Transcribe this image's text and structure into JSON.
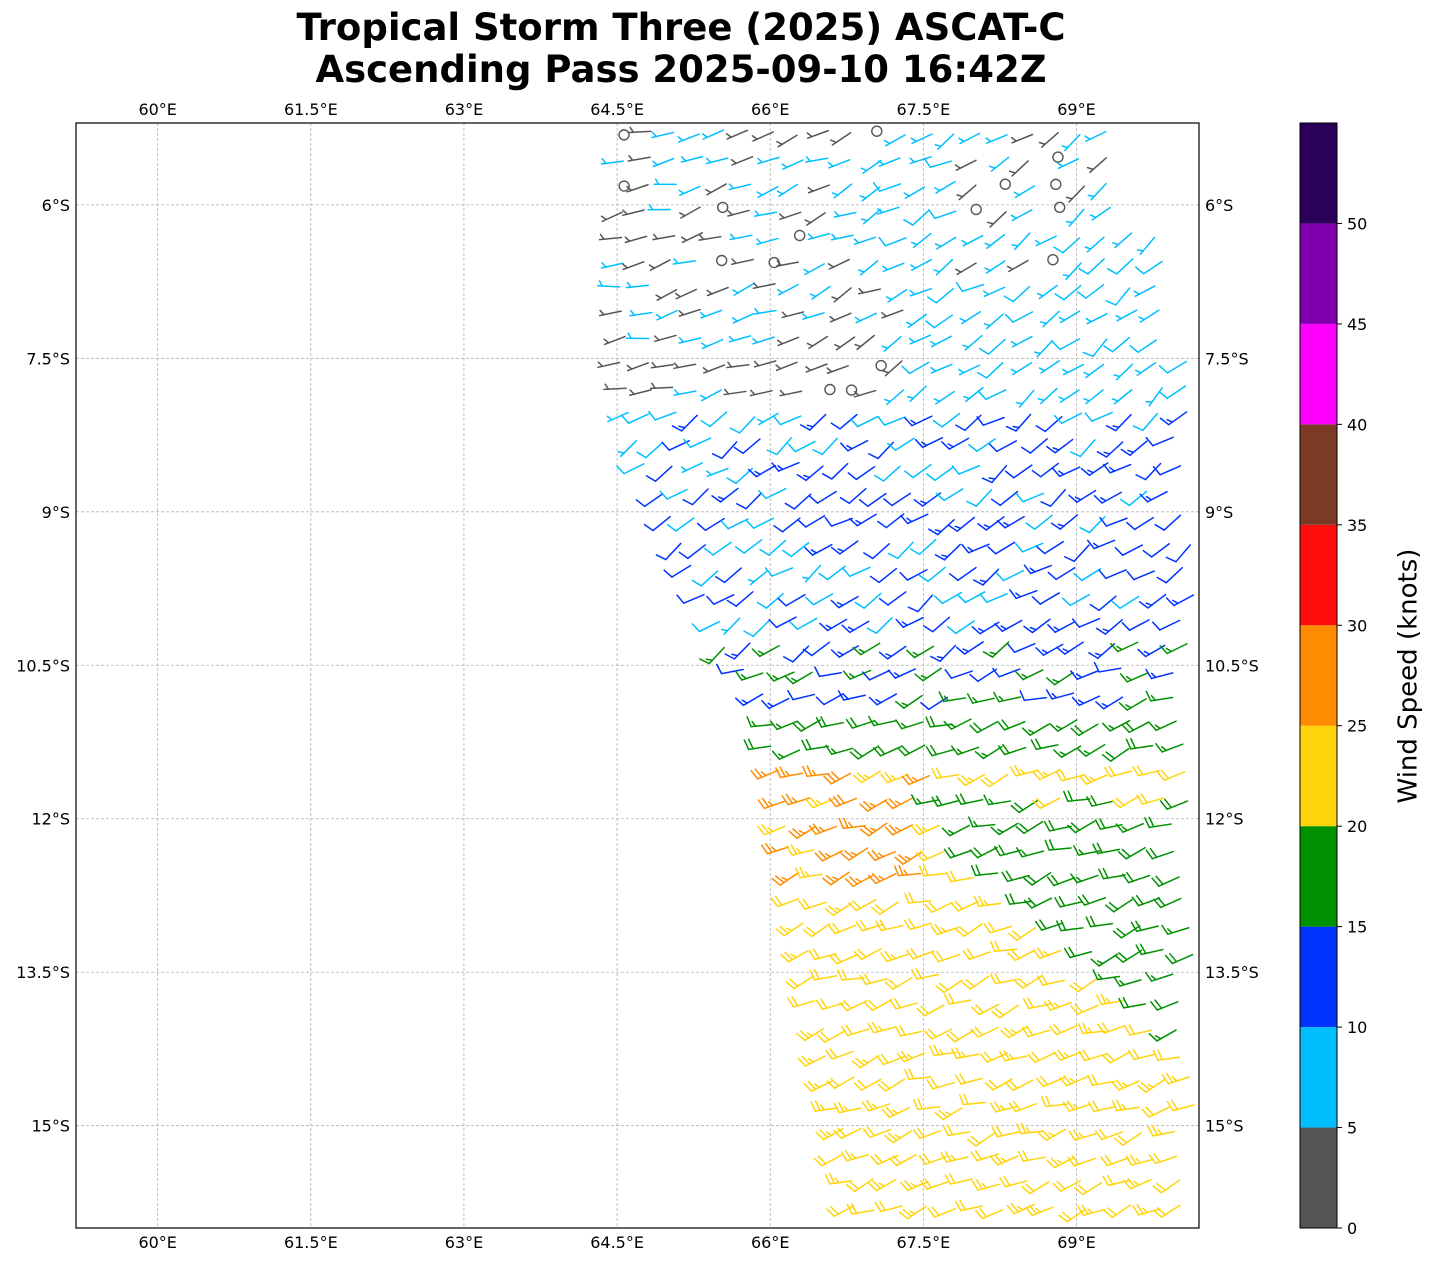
{
  "title": {
    "line1": "Tropical Storm Three (2025) ASCAT-C",
    "line2": "Ascending Pass 2025-09-10 16:42Z"
  },
  "map": {
    "lon_range": [
      59.2,
      70.2
    ],
    "lat_range": [
      -16.0,
      -5.2
    ],
    "lon_ticks": [
      {
        "value": 60.0,
        "label": "60°E"
      },
      {
        "value": 61.5,
        "label": "61.5°E"
      },
      {
        "value": 63.0,
        "label": "63°E"
      },
      {
        "value": 64.5,
        "label": "64.5°E"
      },
      {
        "value": 66.0,
        "label": "66°E"
      },
      {
        "value": 67.5,
        "label": "67.5°E"
      },
      {
        "value": 69.0,
        "label": "69°E"
      }
    ],
    "lat_ticks": [
      {
        "value": -6.0,
        "label": "6°S"
      },
      {
        "value": -7.5,
        "label": "7.5°S"
      },
      {
        "value": -9.0,
        "label": "9°S"
      },
      {
        "value": -10.5,
        "label": "10.5°S"
      },
      {
        "value": -12.0,
        "label": "12°S"
      },
      {
        "value": -13.5,
        "label": "13.5°S"
      },
      {
        "value": -15.0,
        "label": "15°S"
      }
    ],
    "gridlines": true,
    "swath": "ASCAT-C scatterometer wind barbs over the eastern portion of the map (approx. 64.5°E–70.2°E)"
  },
  "colorbar": {
    "label": "Wind Speed (knots)",
    "ticks": [
      0,
      5,
      10,
      15,
      20,
      25,
      30,
      35,
      40,
      45,
      50
    ],
    "max": 55,
    "bins": [
      {
        "min": 0,
        "max": 5,
        "color": "#555555"
      },
      {
        "min": 5,
        "max": 10,
        "color": "#00bfff"
      },
      {
        "min": 10,
        "max": 15,
        "color": "#0033ff"
      },
      {
        "min": 15,
        "max": 20,
        "color": "#009100"
      },
      {
        "min": 20,
        "max": 25,
        "color": "#ffd40c"
      },
      {
        "min": 25,
        "max": 30,
        "color": "#ff8c00"
      },
      {
        "min": 30,
        "max": 35,
        "color": "#ff0d0d"
      },
      {
        "min": 35,
        "max": 40,
        "color": "#7b3a26"
      },
      {
        "min": 40,
        "max": 45,
        "color": "#ff00ff"
      },
      {
        "min": 45,
        "max": 50,
        "color": "#8000b0"
      },
      {
        "min": 50,
        "max": 55,
        "color": "#2a005a"
      }
    ]
  }
}
